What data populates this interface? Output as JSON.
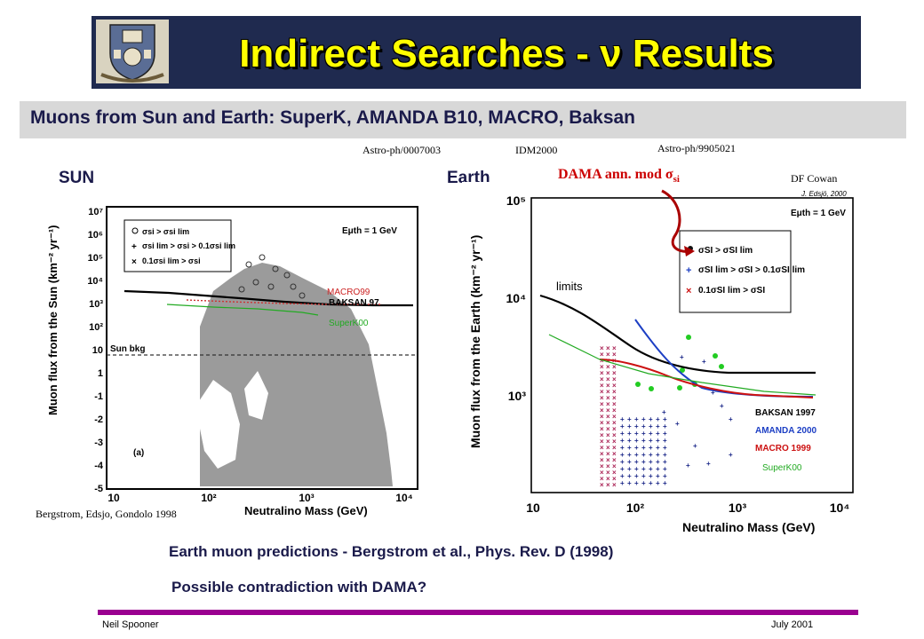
{
  "slide": {
    "title": "Indirect Searches - ν Results",
    "subtitle": "Muons from Sun and Earth: SuperK, AMANDA B10, MACRO, Baksan",
    "refs": {
      "astro1": "Astro-ph/0007003",
      "idm": "IDM2000",
      "astro2": "Astro-ph/9905021",
      "dfcowan": "DF Cowan",
      "bergstrom": "Bergstrom, Edsjo, Gondolo 1998"
    },
    "panels": {
      "sun": "SUN",
      "earth": "Earth"
    },
    "dama": {
      "text": "DAMA ann. mod σ",
      "sub": "si"
    },
    "captions": {
      "line1": "Earth muon predictions - Bergstrom et al., Phys. Rev. D (1998)",
      "line2": "Possible contradiction with DAMA?"
    },
    "footer": {
      "left": "Neil Spooner",
      "right": "July 2001"
    }
  },
  "sun_plot": {
    "ylabel": "Muon flux from the Sun (km⁻² yr⁻¹)",
    "xlabel": "Neutralino Mass (GeV)",
    "y_ticks": [
      "10⁷",
      "10⁶",
      "10⁵",
      "10⁴",
      "10³",
      "10²",
      "10",
      "1",
      "-1",
      "-2",
      "-3",
      "-4",
      "-5"
    ],
    "x_ticks": [
      "10",
      "10²",
      "10³",
      "10⁴"
    ],
    "legend": {
      "row1": "σsi > σsi lim",
      "row2": "σsi lim > σsi > 0.1σsi lim",
      "row3": "0.1σsi lim > σsi"
    },
    "energy_label": "Eμth = 1 GeV",
    "sun_bkg": "Sun bkg",
    "panel_tag": "(a)",
    "labels": {
      "macro": "MACRO99",
      "baksan": "BAKSAN 97",
      "superk": "SuperK00"
    }
  },
  "earth_plot": {
    "ylabel": "Muon flux from the Earth (km⁻² yr⁻¹)",
    "xlabel": "Neutralino Mass (GeV)",
    "y_ticks": [
      "10⁵",
      "10⁴",
      "10³"
    ],
    "x_ticks": [
      "10",
      "10²",
      "10³",
      "10⁴"
    ],
    "credit": "J. Edsjö, 2000",
    "energy_label": "Eμth = 1 GeV",
    "legend": {
      "row1": "σSI > σSI lim",
      "row2": "σSI lim > σSI > 0.1σSI lim",
      "row3": "0.1σSI lim > σSI"
    },
    "limits_label": "limits",
    "experiments": {
      "baksan": "BAKSAN 1997",
      "amanda": "AMANDA 2000",
      "macro": "MACRO 1999"
    },
    "superk": "SuperK00"
  }
}
